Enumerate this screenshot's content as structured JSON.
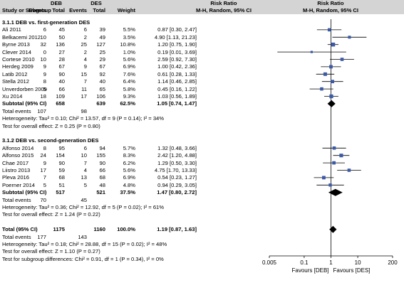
{
  "header": {
    "col_study": "Study or Subgroup",
    "group_deb": "DEB",
    "group_des": "DES",
    "events": "Events",
    "total": "Total",
    "weight": "Weight",
    "rr_title": "Risk Ratio",
    "rr_method": "M-H, Random, 95% CI",
    "plot_title": "Risk Ratio",
    "plot_method": "M-H, Random, 95% CI"
  },
  "subgroups": [
    {
      "title": "3.1.1 DEB vs. first-generation DES",
      "studies": [
        {
          "name": "Ali 2011",
          "e1": "6",
          "n1": "45",
          "e2": "6",
          "n2": "39",
          "weight": "5.5%",
          "ci": "0.87 [0.30, 2.47]"
        },
        {
          "name": "Belkacemi 2012",
          "e1": "10",
          "n1": "50",
          "e2": "2",
          "n2": "49",
          "weight": "3.5%",
          "ci": "4.90 [1.13, 21.23]"
        },
        {
          "name": "Byrne 2013",
          "e1": "32",
          "n1": "136",
          "e2": "25",
          "n2": "127",
          "weight": "10.8%",
          "ci": "1.20 [0.75, 1.90]"
        },
        {
          "name": "Clever 2014",
          "e1": "0",
          "n1": "27",
          "e2": "2",
          "n2": "25",
          "weight": "1.0%",
          "ci": "0.19 [0.01, 3.69]"
        },
        {
          "name": "Cortese 2010",
          "e1": "10",
          "n1": "28",
          "e2": "4",
          "n2": "29",
          "weight": "5.6%",
          "ci": "2.59 [0.92, 7.30]"
        },
        {
          "name": "Herdeg 2009",
          "e1": "9",
          "n1": "67",
          "e2": "9",
          "n2": "67",
          "weight": "6.9%",
          "ci": "1.00 [0.42, 2.36]"
        },
        {
          "name": "Latib 2012",
          "e1": "9",
          "n1": "90",
          "e2": "15",
          "n2": "92",
          "weight": "7.6%",
          "ci": "0.61 [0.28, 1.33]"
        },
        {
          "name": "Stella 2012",
          "e1": "8",
          "n1": "40",
          "e2": "7",
          "n2": "40",
          "weight": "6.4%",
          "ci": "1.14 [0.46, 2.85]"
        },
        {
          "name": "Unverdorben 2009",
          "e1": "5",
          "n1": "66",
          "e2": "11",
          "n2": "65",
          "weight": "5.8%",
          "ci": "0.45 [0.16, 1.22]"
        },
        {
          "name": "Xu 2014",
          "e1": "18",
          "n1": "109",
          "e2": "17",
          "n2": "106",
          "weight": "9.3%",
          "ci": "1.03 [0.56, 1.89]"
        }
      ],
      "subtotal": {
        "label": "Subtotal (95% CI)",
        "n1": "658",
        "n2": "639",
        "weight": "62.5%",
        "ci": "1.05 [0.74, 1.47]"
      },
      "total_events": {
        "label": "Total events",
        "e1": "107",
        "e2": "98"
      },
      "heterogeneity": "Heterogeneity: Tau² = 0.10; Chi² = 13.57, df = 9 (P = 0.14); I² = 34%",
      "overall_effect": "Test for overall effect: Z = 0.25 (P = 0.80)"
    },
    {
      "title": "3.1.2 DEB vs. second-generation DES",
      "studies": [
        {
          "name": "Alfonso 2014",
          "e1": "8",
          "n1": "95",
          "e2": "6",
          "n2": "94",
          "weight": "5.7%",
          "ci": "1.32 [0.48, 3.66]"
        },
        {
          "name": "Alfonso 2015",
          "e1": "24",
          "n1": "154",
          "e2": "10",
          "n2": "155",
          "weight": "8.3%",
          "ci": "2.42 [1.20, 4.88]"
        },
        {
          "name": "Chae 2017",
          "e1": "9",
          "n1": "90",
          "e2": "7",
          "n2": "90",
          "weight": "6.2%",
          "ci": "1.29 [0.50, 3.30]"
        },
        {
          "name": "Liistro 2013",
          "e1": "17",
          "n1": "59",
          "e2": "4",
          "n2": "66",
          "weight": "5.6%",
          "ci": "4.75 [1.70, 13.33]"
        },
        {
          "name": "Pleva 2016",
          "e1": "7",
          "n1": "68",
          "e2": "13",
          "n2": "68",
          "weight": "6.9%",
          "ci": "0.54 [0.23, 1.27]"
        },
        {
          "name": "Poerner 2014",
          "e1": "5",
          "n1": "51",
          "e2": "5",
          "n2": "48",
          "weight": "4.8%",
          "ci": "0.94 [0.29, 3.05]"
        }
      ],
      "subtotal": {
        "label": "Subtotal (95% CI)",
        "n1": "517",
        "n2": "521",
        "weight": "37.5%",
        "ci": "1.47 [0.80, 2.72]"
      },
      "total_events": {
        "label": "Total events",
        "e1": "70",
        "e2": "45"
      },
      "heterogeneity": "Heterogeneity: Tau² = 0.36; Chi² = 12.92, df = 5 (P = 0.02); I² = 61%",
      "overall_effect": "Test for overall effect: Z = 1.24 (P = 0.22)"
    }
  ],
  "total": {
    "label": "Total (95% CI)",
    "n1": "1175",
    "n2": "1160",
    "weight": "100.0%",
    "ci": "1.19 [0.87, 1.63]"
  },
  "total_events": {
    "label": "Total events",
    "e1": "177",
    "e2": "143"
  },
  "heterogeneity": "Heterogeneity: Tau² = 0.18; Chi² = 28.88, df = 15 (P = 0.02); I² = 48%",
  "overall_effect": "Test for overall effect: Z = 1.10 (P = 0.27)",
  "subgroup_diff": "Test for subgroup differences: Chi² = 0.91, df = 1 (P = 0.34), I² = 0%",
  "chart_data": {
    "type": "forest",
    "x_scale": "log",
    "xlim": [
      0.005,
      200
    ],
    "ticks": [
      0.005,
      0.1,
      1,
      10,
      200
    ],
    "tick_labels": [
      "0.005",
      "0.1",
      "1",
      "10",
      "200"
    ],
    "favours_left": "Favours [DEB]",
    "favours_right": "Favours [DES]",
    "colors": {
      "marker": "#3c5aa6",
      "line": "#000000",
      "diamond": "#000000"
    },
    "studies": [
      {
        "name": "Ali 2011",
        "rr": 0.87,
        "lo": 0.3,
        "hi": 2.47,
        "weight": 5.5
      },
      {
        "name": "Belkacemi 2012",
        "rr": 4.9,
        "lo": 1.13,
        "hi": 21.23,
        "weight": 3.5
      },
      {
        "name": "Byrne 2013",
        "rr": 1.2,
        "lo": 0.75,
        "hi": 1.9,
        "weight": 10.8
      },
      {
        "name": "Clever 2014",
        "rr": 0.19,
        "lo": 0.01,
        "hi": 3.69,
        "weight": 1.0
      },
      {
        "name": "Cortese 2010",
        "rr": 2.59,
        "lo": 0.92,
        "hi": 7.3,
        "weight": 5.6
      },
      {
        "name": "Herdeg 2009",
        "rr": 1.0,
        "lo": 0.42,
        "hi": 2.36,
        "weight": 6.9
      },
      {
        "name": "Latib 2012",
        "rr": 0.61,
        "lo": 0.28,
        "hi": 1.33,
        "weight": 7.6
      },
      {
        "name": "Stella 2012",
        "rr": 1.14,
        "lo": 0.46,
        "hi": 2.85,
        "weight": 6.4
      },
      {
        "name": "Unverdorben 2009",
        "rr": 0.45,
        "lo": 0.16,
        "hi": 1.22,
        "weight": 5.8
      },
      {
        "name": "Xu 2014",
        "rr": 1.03,
        "lo": 0.56,
        "hi": 1.89,
        "weight": 9.3
      },
      {
        "name": "Alfonso 2014",
        "rr": 1.32,
        "lo": 0.48,
        "hi": 3.66,
        "weight": 5.7
      },
      {
        "name": "Alfonso 2015",
        "rr": 2.42,
        "lo": 1.2,
        "hi": 4.88,
        "weight": 8.3
      },
      {
        "name": "Chae 2017",
        "rr": 1.29,
        "lo": 0.5,
        "hi": 3.3,
        "weight": 6.2
      },
      {
        "name": "Liistro 2013",
        "rr": 4.75,
        "lo": 1.7,
        "hi": 13.33,
        "weight": 5.6
      },
      {
        "name": "Pleva 2016",
        "rr": 0.54,
        "lo": 0.23,
        "hi": 1.27,
        "weight": 6.9
      },
      {
        "name": "Poerner 2014",
        "rr": 0.94,
        "lo": 0.29,
        "hi": 3.05,
        "weight": 4.8
      }
    ],
    "pooled": [
      {
        "name": "Subtotal 3.1.1",
        "rr": 1.05,
        "lo": 0.74,
        "hi": 1.47
      },
      {
        "name": "Subtotal 3.1.2",
        "rr": 1.47,
        "lo": 0.8,
        "hi": 2.72
      },
      {
        "name": "Total",
        "rr": 1.19,
        "lo": 0.87,
        "hi": 1.63
      }
    ]
  }
}
